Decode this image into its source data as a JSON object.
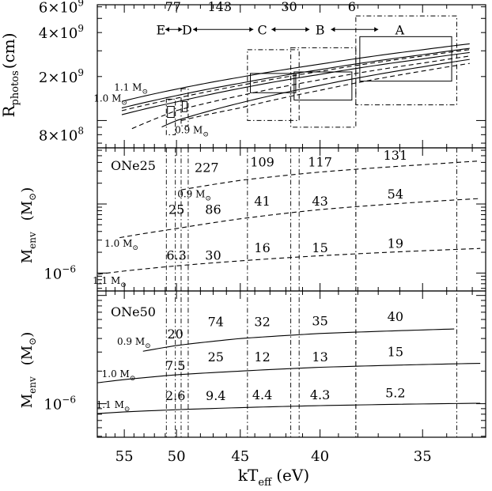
{
  "chart_data": [
    {
      "panel": "top",
      "type": "line",
      "ylabel": "R",
      "ylabel_sub": "photos",
      "ylabel_unit": "(cm)",
      "y_scale": "log",
      "ylim": [
        650000000,
        6200000000
      ],
      "y_ticks": [
        {
          "value": 800000000,
          "mantissa": "8",
          "exp": "8"
        },
        {
          "value": 2000000000,
          "mantissa": "2",
          "exp": "9"
        },
        {
          "value": 4000000000,
          "mantissa": "4",
          "exp": "9"
        },
        {
          "value": 6000000000,
          "mantissa": "6",
          "exp": "9"
        }
      ],
      "xlim": [
        58,
        32.5
      ],
      "x_scale": "reciprocal",
      "curve_labels": [
        {
          "text": "1.0 M",
          "x": 56.5,
          "y": 1350000000
        },
        {
          "text": "1.1 M",
          "x": 54.3,
          "y": 1600000000
        },
        {
          "text": "0.9 M",
          "x": 48.7,
          "y": 820000000
        }
      ],
      "series": [
        {
          "style": "solid",
          "x": [
            55.9,
            50,
            45,
            40,
            35,
            33.1
          ],
          "y": [
            1320000000,
            1640000000,
            1980000000,
            2430000000,
            3050000000,
            3350000000
          ]
        },
        {
          "style": "solid",
          "x": [
            55.9,
            50,
            45,
            40,
            35,
            33.1
          ],
          "y": [
            1190000000,
            1480000000,
            1800000000,
            2230000000,
            2820000000,
            3120000000
          ]
        },
        {
          "style": "solid",
          "x": [
            55.9,
            50,
            45,
            40,
            35,
            33.1
          ],
          "y": [
            1070000000,
            1340000000,
            1660000000,
            2070000000,
            2640000000,
            2920000000
          ]
        },
        {
          "style": "solid",
          "x": [
            51.8,
            50,
            45,
            40,
            35,
            33.1
          ],
          "y": [
            870000000,
            1000000000,
            1320000000,
            1740000000,
            2330000000,
            2620000000
          ]
        },
        {
          "style": "dashed",
          "x": [
            55.9,
            50,
            45,
            40,
            35,
            33.1
          ],
          "y": [
            1140000000,
            1420000000,
            1740000000,
            2170000000,
            2760000000,
            3060000000
          ]
        },
        {
          "style": "dashed",
          "x": [
            54.2,
            50,
            45,
            40,
            35,
            33.1
          ],
          "y": [
            880000000,
            1170000000,
            1480000000,
            1900000000,
            2470000000,
            2760000000
          ]
        },
        {
          "style": "dashed",
          "x": [
            49.6,
            45,
            40,
            35,
            33.1
          ],
          "y": [
            1000000000,
            1220000000,
            1610000000,
            2180000000,
            2460000000
          ]
        }
      ],
      "boxes": [
        {
          "style": "dashdot",
          "x": [
            50.9,
            50.1
          ],
          "y": [
            800000000,
            1400000000
          ]
        },
        {
          "style": "solid",
          "x": [
            50.8,
            50.2
          ],
          "y": [
            1050000000,
            1250000000
          ]
        },
        {
          "style": "dashdot",
          "x": [
            49.6,
            49.0
          ],
          "y": [
            920000000,
            1650000000
          ]
        },
        {
          "style": "solid",
          "x": [
            49.5,
            49.1
          ],
          "y": [
            1150000000,
            1350000000
          ]
        },
        {
          "style": "dashdot",
          "x": [
            44.5,
            41.2
          ],
          "y": [
            1000000000,
            3050000000
          ]
        },
        {
          "style": "solid",
          "x": [
            44.3,
            41.4
          ],
          "y": [
            1550000000,
            2100000000
          ]
        },
        {
          "style": "dashdot",
          "x": [
            41.7,
            38.1
          ],
          "y": [
            900000000,
            3150000000
          ]
        },
        {
          "style": "solid",
          "x": [
            41.5,
            38.3
          ],
          "y": [
            1380000000,
            2150000000
          ]
        },
        {
          "style": "dashdot",
          "x": [
            38.1,
            33.6
          ],
          "y": [
            1280000000,
            5200000000
          ]
        },
        {
          "style": "solid",
          "x": [
            37.9,
            33.8
          ],
          "y": [
            1860000000,
            3750000000
          ]
        }
      ],
      "epochs": [
        {
          "label": "E",
          "x": 51.4
        },
        {
          "label": "D",
          "x": 49.1
        },
        {
          "label": "C",
          "x": 43.5
        },
        {
          "label": "B",
          "x": 40.0
        },
        {
          "label": "A",
          "x": 36.0
        }
      ],
      "intervals": [
        {
          "label": "77",
          "from": 51.0,
          "to": 49.5,
          "label_x": 50.3
        },
        {
          "label": "143",
          "from": 48.6,
          "to": 44.1,
          "label_x": 46.5
        },
        {
          "label": "30",
          "from": 42.9,
          "to": 40.6,
          "label_x": 41.8
        },
        {
          "label": "6",
          "from": 39.4,
          "to": 37.0,
          "label_x": 38.3
        }
      ],
      "epoch_y": 4200000000,
      "interval_label_y": 5600000000
    },
    {
      "panel": "middle",
      "type": "line",
      "title": "ONe25",
      "ylabel": "M",
      "ylabel_sub": "env",
      "ylabel_unit": "(M",
      "y_scale": "log",
      "ylim": [
        5.5e-07,
        6.5e-05
      ],
      "y_ticks": [
        {
          "value": 1e-06,
          "mantissa": "10",
          "exp": "−6"
        }
      ],
      "xlim": [
        58,
        32.5
      ],
      "x_scale": "reciprocal",
      "curve_labels": [
        {
          "text": "0.9 M",
          "x": 48.5,
          "y": 1.25e-05
        },
        {
          "text": "1.0 M",
          "x": 55.3,
          "y": 2.4e-06
        },
        {
          "text": "1.1 M",
          "x": 56.6,
          "y": 7e-07
        }
      ],
      "series": [
        {
          "style": "dashed",
          "name": "0.9",
          "x": [
            49.6,
            45,
            40,
            35,
            32.7
          ],
          "y": [
            1.6e-05,
            2.2e-05,
            2.9e-05,
            3.7e-05,
            4.2e-05
          ]
        },
        {
          "style": "dashed",
          "name": "1.0",
          "x": [
            55.5,
            50,
            45,
            40,
            35,
            32.7
          ],
          "y": [
            3.25e-06,
            4.4e-06,
            6.1e-06,
            8.3e-06,
            1.07e-05,
            1.2e-05
          ]
        },
        {
          "style": "dashed",
          "name": "1.1",
          "x": [
            57.9,
            55,
            50,
            45,
            40,
            35,
            32.7
          ],
          "y": [
            9.6e-07,
            1.07e-06,
            1.27e-06,
            1.5e-06,
            1.78e-06,
            2.1e-06,
            2.27e-06
          ]
        }
      ],
      "annotations": [
        {
          "text": "227",
          "x": 47.5,
          "y": 2.9e-05
        },
        {
          "text": "109",
          "x": 43.5,
          "y": 3.5e-05
        },
        {
          "text": "117",
          "x": 40.0,
          "y": 3.5e-05
        },
        {
          "text": "131",
          "x": 36.2,
          "y": 4.4e-05
        },
        {
          "text": "25",
          "x": 50.0,
          "y": 7.2e-06
        },
        {
          "text": "86",
          "x": 47.0,
          "y": 7.2e-06
        },
        {
          "text": "41",
          "x": 43.5,
          "y": 9.5e-06
        },
        {
          "text": "43",
          "x": 40.0,
          "y": 9.5e-06
        },
        {
          "text": "54",
          "x": 36.2,
          "y": 1.2e-05
        },
        {
          "text": "6.3",
          "x": 50.0,
          "y": 1.55e-06
        },
        {
          "text": "30",
          "x": 47.0,
          "y": 1.55e-06
        },
        {
          "text": "16",
          "x": 43.5,
          "y": 2e-06
        },
        {
          "text": "15",
          "x": 40.0,
          "y": 2e-06
        },
        {
          "text": "19",
          "x": 36.2,
          "y": 2.3e-06
        }
      ]
    },
    {
      "panel": "bottom",
      "type": "line",
      "title": "ONe50",
      "ylabel": "M",
      "ylabel_sub": "env",
      "ylabel_unit": "(M",
      "y_scale": "log",
      "ylim": [
        4.9e-07,
        1.1e-05
      ],
      "y_ticks": [
        {
          "value": 1e-06,
          "mantissa": "10",
          "exp": "−6"
        }
      ],
      "xlim": [
        58,
        32.5
      ],
      "x_scale": "reciprocal",
      "xlabel": "kT",
      "xlabel_sub": "eff",
      "xlabel_unit": "(eV)",
      "x_ticks": [
        55,
        50,
        45,
        40,
        35
      ],
      "curve_labels": [
        {
          "text": "0.9 M",
          "x": 54.0,
          "y": 3.5e-06
        },
        {
          "text": "1.0 M",
          "x": 55.6,
          "y": 1.76e-06
        },
        {
          "text": "1.1 M",
          "x": 56.2,
          "y": 9.1e-07
        }
      ],
      "series": [
        {
          "style": "solid",
          "name": "0.9",
          "x": [
            53.1,
            50,
            45,
            40,
            35,
            33.7
          ],
          "y": [
            3.05e-06,
            3.45e-06,
            4e-06,
            4.45e-06,
            4.8e-06,
            4.9e-06
          ]
        },
        {
          "style": "solid",
          "name": "1.0",
          "x": [
            58,
            55,
            50,
            45,
            40,
            35,
            32.7
          ],
          "y": [
            1.56e-06,
            1.67e-06,
            1.85e-06,
            2e-06,
            2.17e-06,
            2.3e-06,
            2.36e-06
          ]
        },
        {
          "style": "solid",
          "name": "1.1",
          "x": [
            58,
            55,
            50,
            45,
            40,
            35,
            32.7
          ],
          "y": [
            8.1e-07,
            8.4e-07,
            8.8e-07,
            9.2e-07,
            9.6e-07,
            9.95e-07,
            1.01e-06
          ]
        }
      ],
      "annotations": [
        {
          "text": "20",
          "x": 50.1,
          "y": 4e-06
        },
        {
          "text": "74",
          "x": 46.8,
          "y": 5.2e-06
        },
        {
          "text": "32",
          "x": 43.5,
          "y": 5.2e-06
        },
        {
          "text": "35",
          "x": 40.0,
          "y": 5.3e-06
        },
        {
          "text": "40",
          "x": 36.2,
          "y": 5.8e-06
        },
        {
          "text": "7.5",
          "x": 50.1,
          "y": 2.05e-06
        },
        {
          "text": "25",
          "x": 46.8,
          "y": 2.47e-06
        },
        {
          "text": "12",
          "x": 43.5,
          "y": 2.47e-06
        },
        {
          "text": "13",
          "x": 40.0,
          "y": 2.47e-06
        },
        {
          "text": "15",
          "x": 36.2,
          "y": 2.75e-06
        },
        {
          "text": "2.6",
          "x": 50.1,
          "y": 1.08e-06
        },
        {
          "text": "9.4",
          "x": 46.8,
          "y": 1.08e-06
        },
        {
          "text": "4.4",
          "x": 43.5,
          "y": 1.1e-06
        },
        {
          "text": "4.3",
          "x": 40.0,
          "y": 1.1e-06
        },
        {
          "text": "5.2",
          "x": 36.2,
          "y": 1.15e-06
        }
      ]
    }
  ],
  "observation_bands": [
    {
      "x": [
        50.9,
        50.1
      ]
    },
    {
      "x": [
        49.6,
        49.0
      ]
    },
    {
      "x": [
        44.5,
        41.2
      ]
    },
    {
      "x": [
        41.7,
        38.1
      ]
    },
    {
      "x": [
        38.1,
        33.6
      ]
    }
  ]
}
